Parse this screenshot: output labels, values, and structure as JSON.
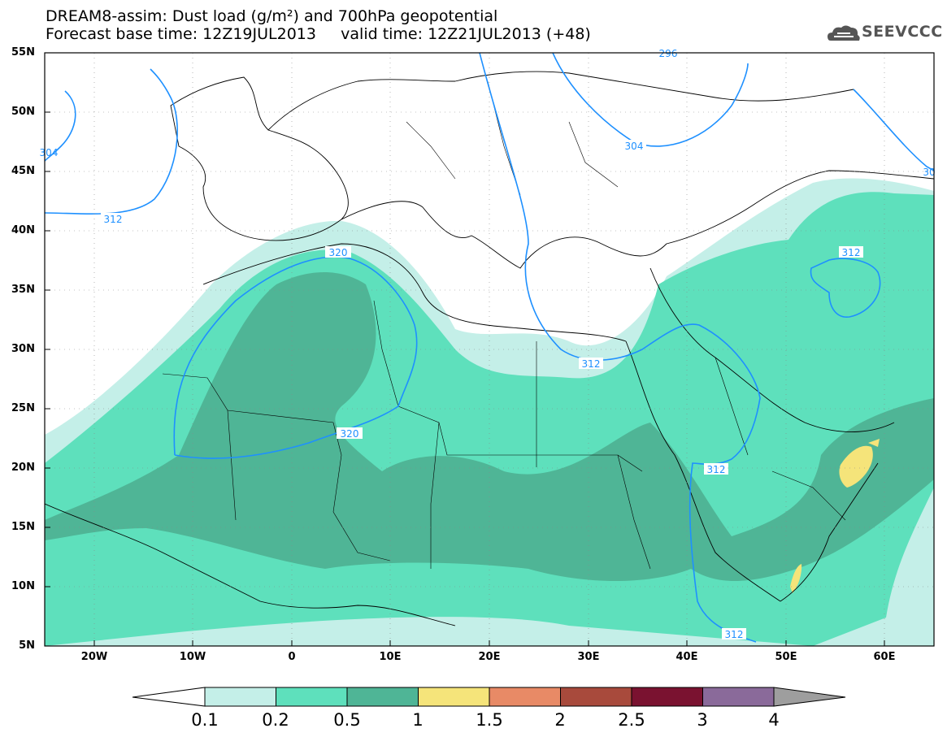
{
  "header": {
    "title_line1": "DREAM8-assim: Dust load (g/m²) and 700hPa geopotential",
    "title_line2": "Forecast base time: 12Z19JUL2013     valid time: 12Z21JUL2013 (+48)",
    "logo_text": "SEEVCCC",
    "logo_icon": "cloud-icon"
  },
  "axes": {
    "lat_labels": [
      "55N",
      "50N",
      "45N",
      "40N",
      "35N",
      "30N",
      "25N",
      "20N",
      "15N",
      "10N",
      "5N"
    ],
    "lon_labels": [
      "20W",
      "10W",
      "0",
      "10E",
      "20E",
      "30E",
      "40E",
      "50E",
      "60E"
    ],
    "lat_range": [
      5,
      55
    ],
    "lon_range": [
      -25,
      65
    ]
  },
  "contours": {
    "labels": [
      "312",
      "320",
      "320",
      "312",
      "312",
      "312",
      "304",
      "312",
      "296",
      "304",
      "30"
    ],
    "color": "#1e90ff"
  },
  "colorbar": {
    "labels": [
      "0.1",
      "0.2",
      "0.5",
      "1",
      "1.5",
      "2",
      "2.5",
      "3",
      "4"
    ],
    "colors": [
      "#c4efe8",
      "#5ee0bc",
      "#4fb596",
      "#f5e47a",
      "#e88a66",
      "#a84a3c",
      "#7a1230",
      "#8a6a9a",
      "#9e9e9e"
    ]
  }
}
